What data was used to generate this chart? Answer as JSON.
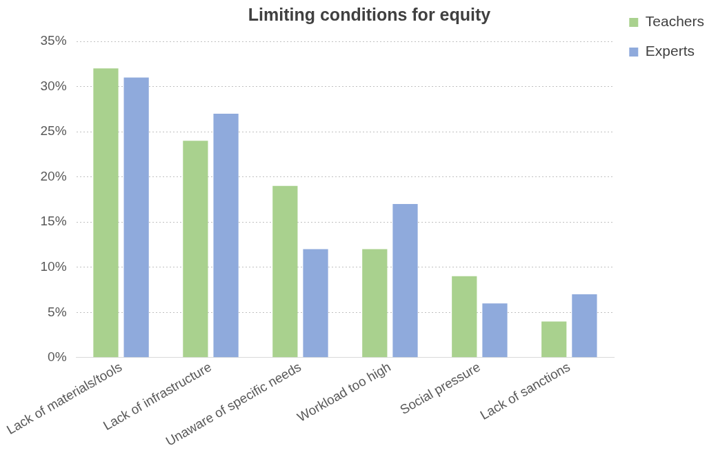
{
  "chart_data": {
    "type": "bar",
    "title": "Limiting conditions for equity",
    "categories": [
      "Lack of materials/tools",
      "Lack of infrastructure",
      "Unaware of specific needs",
      "Workload too high",
      "Social pressure",
      "Lack of sanctions"
    ],
    "series": [
      {
        "name": "Teachers",
        "color": "#a9d18e",
        "values": [
          32,
          24,
          19,
          12,
          9,
          4
        ]
      },
      {
        "name": "Experts",
        "color": "#8faadc",
        "values": [
          31,
          27,
          12,
          17,
          6,
          7
        ]
      }
    ],
    "ylim": [
      0,
      35
    ],
    "yticks": [
      {
        "value": 0,
        "label": "0%"
      },
      {
        "value": 5,
        "label": "5%"
      },
      {
        "value": 10,
        "label": "10%"
      },
      {
        "value": 15,
        "label": "15%"
      },
      {
        "value": 20,
        "label": "20%"
      },
      {
        "value": 25,
        "label": "25%"
      },
      {
        "value": 30,
        "label": "30%"
      },
      {
        "value": 35,
        "label": "35%"
      }
    ],
    "grid": "y",
    "legend": "top right"
  }
}
